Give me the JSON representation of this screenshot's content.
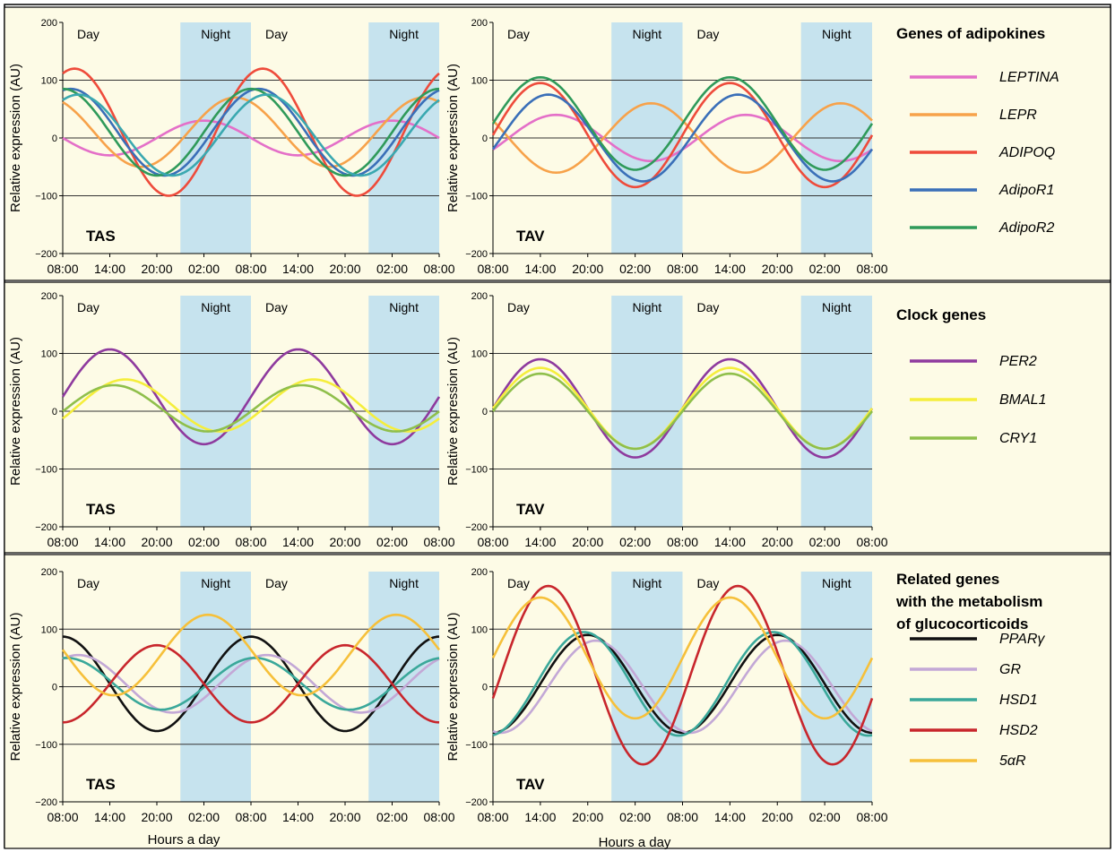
{
  "figure": {
    "background": "#fdfbe6",
    "frame_color": "#000000",
    "night_color": "#c6e3ee",
    "ylabel": "Relative expression (AU)",
    "xlabel": "Hours a day",
    "yticks": [
      200,
      100,
      0,
      -100,
      -200
    ],
    "ytick_labels": [
      "200",
      "100",
      "0",
      "−100",
      "−200"
    ],
    "xticks": [
      "08:00",
      "14:00",
      "20:00",
      "02:00",
      "08:00",
      "14:00",
      "20:00",
      "02:00",
      "08:00"
    ],
    "day_label": "Day",
    "night_label": "Night"
  },
  "legends": [
    {
      "title": [
        "Genes of adipokines"
      ],
      "entries": [
        {
          "name": "LEPTINA",
          "color": "#e46fc8"
        },
        {
          "name": "LEPR",
          "color": "#f7a24a"
        },
        {
          "name": "ADIPOQ",
          "color": "#ee4b3b"
        },
        {
          "name": "AdipoR1",
          "color": "#3a6fb8"
        },
        {
          "name": "AdipoR2",
          "color": "#2f9a5a"
        }
      ]
    },
    {
      "title": [
        "Clock genes"
      ],
      "entries": [
        {
          "name": "PER2",
          "color": "#8e3a9e"
        },
        {
          "name": "BMAL1",
          "color": "#f5ee3c"
        },
        {
          "name": "CRY1",
          "color": "#8fbf4b"
        }
      ]
    },
    {
      "title": [
        "Related genes",
        "with the metabolism",
        "of glucocorticoids"
      ],
      "entries": [
        {
          "name": "PPARγ",
          "color": "#111111"
        },
        {
          "name": "GR",
          "color": "#c3a8d6"
        },
        {
          "name": "HSD1",
          "color": "#3aa89a"
        },
        {
          "name": "HSD2",
          "color": "#c8262c"
        },
        {
          "name": "5αR",
          "color": "#f6c03a"
        }
      ]
    }
  ],
  "chart_data": [
    {
      "type": "line",
      "panel_label": "TAS",
      "row": 0,
      "col": 0,
      "x": [
        "08:00",
        "14:00",
        "20:00",
        "02:00",
        "08:00",
        "14:00",
        "20:00",
        "02:00",
        "08:00"
      ],
      "ylim": [
        -200,
        200
      ],
      "day_intervals": [
        [
          "08:00",
          "23:00"
        ],
        [
          "08:00",
          "23:00"
        ]
      ],
      "night_intervals": [
        [
          "23:00",
          "08:00"
        ],
        [
          "23:00",
          "08:00"
        ]
      ],
      "series": [
        {
          "name": "LEPTINA",
          "color": "#e46fc8",
          "mesor": 0,
          "amplitude": 30,
          "peak": "02:00"
        },
        {
          "name": "LEPR",
          "color": "#f7a24a",
          "mesor": 10,
          "amplitude": 60,
          "peak": "06:00"
        },
        {
          "name": "ADIPOQ",
          "color": "#ee4b3b",
          "mesor": 10,
          "amplitude": 110,
          "peak": "09:30"
        },
        {
          "name": "AdipoR1",
          "color": "#3a6fb8",
          "mesor": 10,
          "amplitude": 75,
          "peak": "09:00"
        },
        {
          "name": "AdipoR2",
          "color": "#2f9a5a",
          "mesor": 10,
          "amplitude": 75,
          "peak": "08:00"
        },
        {
          "name": "AdipoR1",
          "color": "#3aa8b0",
          "mesor": 5,
          "amplitude": 70,
          "peak": "10:00"
        }
      ]
    },
    {
      "type": "line",
      "panel_label": "TAV",
      "row": 0,
      "col": 1,
      "x": [
        "08:00",
        "14:00",
        "20:00",
        "02:00",
        "08:00",
        "14:00",
        "20:00",
        "02:00",
        "08:00"
      ],
      "ylim": [
        -200,
        200
      ],
      "day_intervals": [
        [
          "08:00",
          "23:00"
        ],
        [
          "08:00",
          "23:00"
        ]
      ],
      "night_intervals": [
        [
          "23:00",
          "08:00"
        ],
        [
          "23:00",
          "08:00"
        ]
      ],
      "series": [
        {
          "name": "LEPTINA",
          "color": "#e46fc8",
          "mesor": 0,
          "amplitude": 40,
          "peak": "16:00"
        },
        {
          "name": "LEPR",
          "color": "#f7a24a",
          "mesor": 0,
          "amplitude": 60,
          "peak": "04:00"
        },
        {
          "name": "ADIPOQ",
          "color": "#ee4b3b",
          "mesor": 5,
          "amplitude": 90,
          "peak": "14:00"
        },
        {
          "name": "AdipoR1",
          "color": "#3a6fb8",
          "mesor": 0,
          "amplitude": 75,
          "peak": "15:00"
        },
        {
          "name": "AdipoR2",
          "color": "#2f9a5a",
          "mesor": 25,
          "amplitude": 80,
          "peak": "14:00"
        }
      ]
    },
    {
      "type": "line",
      "panel_label": "TAS",
      "row": 1,
      "col": 0,
      "x": [
        "08:00",
        "14:00",
        "20:00",
        "02:00",
        "08:00",
        "14:00",
        "20:00",
        "02:00",
        "08:00"
      ],
      "ylim": [
        -200,
        200
      ],
      "day_intervals": [
        [
          "08:00",
          "23:00"
        ],
        [
          "08:00",
          "23:00"
        ]
      ],
      "night_intervals": [
        [
          "23:00",
          "08:00"
        ],
        [
          "23:00",
          "08:00"
        ]
      ],
      "series": [
        {
          "name": "PER2",
          "color": "#8e3a9e",
          "mesor": 25,
          "amplitude": 82,
          "peak": "14:00"
        },
        {
          "name": "BMAL1",
          "color": "#f5ee3c",
          "mesor": 10,
          "amplitude": 45,
          "peak": "16:00"
        },
        {
          "name": "CRY1",
          "color": "#8fbf4b",
          "mesor": 5,
          "amplitude": 40,
          "peak": "14:30"
        }
      ]
    },
    {
      "type": "line",
      "panel_label": "TAV",
      "row": 1,
      "col": 1,
      "x": [
        "08:00",
        "14:00",
        "20:00",
        "02:00",
        "08:00",
        "14:00",
        "20:00",
        "02:00",
        "08:00"
      ],
      "ylim": [
        -200,
        200
      ],
      "day_intervals": [
        [
          "08:00",
          "23:00"
        ],
        [
          "08:00",
          "23:00"
        ]
      ],
      "night_intervals": [
        [
          "23:00",
          "08:00"
        ],
        [
          "23:00",
          "08:00"
        ]
      ],
      "series": [
        {
          "name": "PER2",
          "color": "#8e3a9e",
          "mesor": 5,
          "amplitude": 85,
          "peak": "14:00"
        },
        {
          "name": "BMAL1",
          "color": "#f5ee3c",
          "mesor": 5,
          "amplitude": 70,
          "peak": "14:00"
        },
        {
          "name": "CRY1",
          "color": "#8fbf4b",
          "mesor": 0,
          "amplitude": 65,
          "peak": "14:00"
        }
      ]
    },
    {
      "type": "line",
      "panel_label": "TAS",
      "row": 2,
      "col": 0,
      "x": [
        "08:00",
        "14:00",
        "20:00",
        "02:00",
        "08:00",
        "14:00",
        "20:00",
        "02:00",
        "08:00"
      ],
      "ylim": [
        -200,
        200
      ],
      "day_intervals": [
        [
          "08:00",
          "23:00"
        ],
        [
          "08:00",
          "23:00"
        ]
      ],
      "night_intervals": [
        [
          "23:00",
          "08:00"
        ],
        [
          "23:00",
          "08:00"
        ]
      ],
      "series": [
        {
          "name": "PPARγ",
          "color": "#111111",
          "mesor": 5,
          "amplitude": 82,
          "peak": "08:00"
        },
        {
          "name": "GR",
          "color": "#c3a8d6",
          "mesor": 5,
          "amplitude": 50,
          "peak": "10:00"
        },
        {
          "name": "HSD1",
          "color": "#3aa89a",
          "mesor": 5,
          "amplitude": 45,
          "peak": "08:30"
        },
        {
          "name": "HSD2",
          "color": "#c8262c",
          "mesor": 5,
          "amplitude": 67,
          "peak": "20:00"
        },
        {
          "name": "5αR",
          "color": "#f6c03a",
          "mesor": 55,
          "amplitude": 70,
          "peak": "02:30"
        }
      ]
    },
    {
      "type": "line",
      "panel_label": "TAV",
      "row": 2,
      "col": 1,
      "x": [
        "08:00",
        "14:00",
        "20:00",
        "02:00",
        "08:00",
        "14:00",
        "20:00",
        "02:00",
        "08:00"
      ],
      "ylim": [
        -200,
        200
      ],
      "day_intervals": [
        [
          "08:00",
          "23:00"
        ],
        [
          "08:00",
          "23:00"
        ]
      ],
      "night_intervals": [
        [
          "23:00",
          "08:00"
        ],
        [
          "23:00",
          "08:00"
        ]
      ],
      "series": [
        {
          "name": "PPARγ",
          "color": "#111111",
          "mesor": 5,
          "amplitude": 85,
          "peak": "20:00"
        },
        {
          "name": "GR",
          "color": "#c3a8d6",
          "mesor": 0,
          "amplitude": 80,
          "peak": "21:00"
        },
        {
          "name": "HSD1",
          "color": "#3aa89a",
          "mesor": 5,
          "amplitude": 90,
          "peak": "19:30"
        },
        {
          "name": "HSD2",
          "color": "#c8262c",
          "mesor": 20,
          "amplitude": 155,
          "peak": "15:00"
        },
        {
          "name": "5αR",
          "color": "#f6c03a",
          "mesor": 50,
          "amplitude": 105,
          "peak": "14:00"
        }
      ]
    }
  ]
}
